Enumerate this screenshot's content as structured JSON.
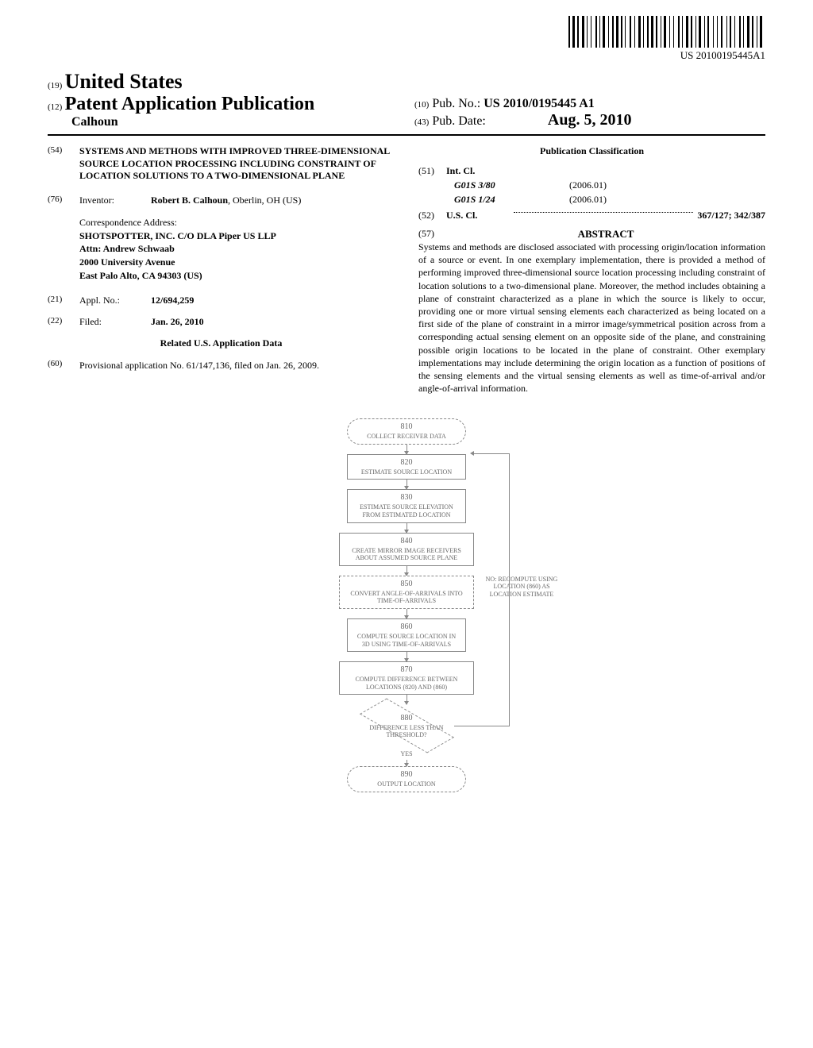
{
  "barcode": {
    "pattern": [
      2,
      1,
      3,
      1,
      2,
      2,
      3,
      1,
      1,
      2,
      1,
      3,
      2,
      1,
      1,
      1,
      3,
      2,
      1,
      2,
      2,
      1,
      3,
      1,
      2,
      1,
      1,
      3,
      2,
      2,
      1,
      2,
      3,
      1,
      1,
      2,
      2,
      1,
      3,
      1,
      2,
      2,
      1,
      1,
      3,
      2,
      1,
      2,
      1,
      3,
      2,
      1,
      1,
      2,
      3,
      1,
      2,
      2,
      1,
      1,
      3,
      2,
      1,
      1,
      2,
      3,
      1,
      2,
      1,
      2,
      2,
      3,
      1,
      1,
      2,
      2,
      1,
      3,
      2,
      1,
      1,
      2,
      3,
      1,
      2,
      2,
      1,
      1,
      3,
      2
    ],
    "doc_number": "US 20100195445A1"
  },
  "header": {
    "num19": "(19)",
    "country": "United States",
    "num12": "(12)",
    "pub_type": "Patent Application Publication",
    "author": "Calhoun",
    "num10": "(10)",
    "pub_no_label": "Pub. No.:",
    "pub_no": "US 2010/0195445 A1",
    "num43": "(43)",
    "pub_date_label": "Pub. Date:",
    "pub_date": "Aug. 5, 2010"
  },
  "title": {
    "num": "(54)",
    "text": "SYSTEMS AND METHODS WITH IMPROVED THREE-DIMENSIONAL SOURCE LOCATION PROCESSING INCLUDING CONSTRAINT OF LOCATION SOLUTIONS TO A TWO-DIMENSIONAL PLANE"
  },
  "inventor": {
    "num": "(76)",
    "label": "Inventor:",
    "name": "Robert B. Calhoun",
    "loc": ", Oberlin, OH (US)"
  },
  "correspondence": {
    "label": "Correspondence Address:",
    "line1": "SHOTSPOTTER, INC. C/O DLA Piper US LLP",
    "line2": "Attn: Andrew Schwaab",
    "line3": "2000 University Avenue",
    "line4": "East Palo Alto, CA 94303 (US)"
  },
  "appl": {
    "num": "(21)",
    "label": "Appl. No.:",
    "value": "12/694,259"
  },
  "filed": {
    "num": "(22)",
    "label": "Filed:",
    "value": "Jan. 26, 2010"
  },
  "related": {
    "header": "Related U.S. Application Data",
    "num": "(60)",
    "text": "Provisional application No. 61/147,136, filed on Jan. 26, 2009."
  },
  "classification": {
    "header": "Publication Classification",
    "num51": "(51)",
    "intcl_label": "Int. Cl.",
    "class1_code": "G01S 3/80",
    "class1_year": "(2006.01)",
    "class2_code": "G01S 1/24",
    "class2_year": "(2006.01)",
    "num52": "(52)",
    "uscl_label": "U.S. Cl.",
    "uscl_value": "367/127; 342/387"
  },
  "abstract": {
    "num": "(57)",
    "header": "ABSTRACT",
    "text": "Systems and methods are disclosed associated with processing origin/location information of a source or event. In one exemplary implementation, there is provided a method of performing improved three-dimensional source location processing including constraint of location solutions to a two-dimensional plane. Moreover, the method includes obtaining a plane of constraint characterized as a plane in which the source is likely to occur, providing one or more virtual sensing elements each characterized as being located on a first side of the plane of constraint in a mirror image/symmetrical position across from a corresponding actual sensing element on an opposite side of the plane, and constraining possible origin locations to be located in the plane of constraint. Other exemplary implementations may include determining the origin location as a function of positions of the sensing elements and the virtual sensing elements as well as time-of-arrival and/or angle-of-arrival information."
  },
  "flowchart": {
    "box810_num": "810",
    "box810_text": "COLLECT RECEIVER DATA",
    "box820_num": "820",
    "box820_text": "ESTIMATE SOURCE LOCATION",
    "box830_num": "830",
    "box830_text": "ESTIMATE SOURCE ELEVATION FROM ESTIMATED LOCATION",
    "box840_num": "840",
    "box840_text": "CREATE MIRROR IMAGE RECEIVERS ABOUT ASSUMED SOURCE PLANE",
    "box850_num": "850",
    "box850_text": "CONVERT ANGLE-OF-ARRIVALS INTO TIME-OF-ARRIVALS",
    "box860_num": "860",
    "box860_text": "COMPUTE SOURCE LOCATION IN 3D USING TIME-OF-ARRIVALS",
    "box870_num": "870",
    "box870_text": "COMPUTE DIFFERENCE BETWEEN LOCATIONS (820) AND (860)",
    "box880_num": "880",
    "box880_text": "DIFFERENCE LESS THAN THRESHOLD?",
    "box890_num": "890",
    "box890_text": "OUTPUT LOCATION",
    "side_no": "NO: RECOMPUTE USING LOCATION (860) AS LOCATION ESTIMATE",
    "yes": "YES"
  }
}
